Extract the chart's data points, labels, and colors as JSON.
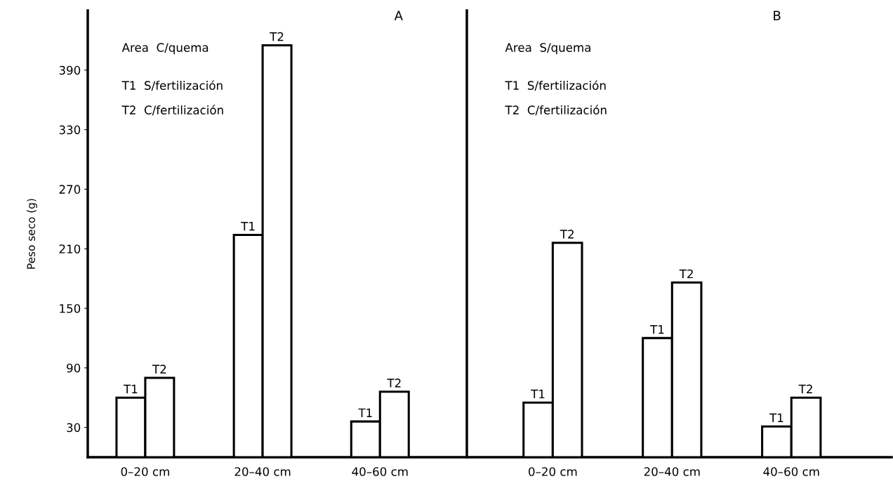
{
  "chart_data": [
    {
      "type": "bar",
      "title": "A",
      "ylabel": "Peso seco (g)",
      "categories": [
        "0–20 cm",
        "20–40 cm",
        "40–60 cm"
      ],
      "series": [
        {
          "name": "T1",
          "color": "#ffffff",
          "values": [
            60,
            224,
            36
          ]
        },
        {
          "name": "T2",
          "color": "#ffffff",
          "values": [
            80,
            415,
            66
          ]
        }
      ],
      "ylim": [
        0,
        450
      ],
      "yticks": [
        30,
        90,
        150,
        210,
        270,
        330,
        390
      ],
      "annotations": [
        "Area  C/quema",
        "T1  S/fertilización",
        "T2  C/fertilización"
      ]
    },
    {
      "type": "bar",
      "title": "B",
      "categories": [
        "0–20 cm",
        "20–40 cm",
        "40–60 cm"
      ],
      "series": [
        {
          "name": "T1",
          "color": "#ffffff",
          "values": [
            55,
            120,
            31
          ]
        },
        {
          "name": "T2",
          "color": "#ffffff",
          "values": [
            216,
            176,
            60
          ]
        }
      ],
      "ylim": [
        0,
        450
      ],
      "tick_labels": "x",
      "annotations": [
        "Area  S/quema",
        "T1  S/fertilización",
        "T2  C/fertilización"
      ]
    }
  ]
}
